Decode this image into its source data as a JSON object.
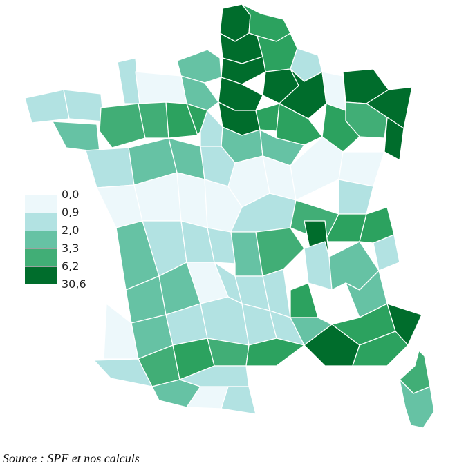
{
  "map": {
    "colors": [
      "#edf8fb",
      "#b2e2e2",
      "#66c2a4",
      "#41ae76",
      "#2ca25f",
      "#006d2c"
    ],
    "legend": {
      "values": [
        "0,0",
        "0,9",
        "2,0",
        "3,3",
        "6,2",
        "30,6"
      ],
      "colors": [
        "#edf8fb",
        "#b2e2e2",
        "#66c2a4",
        "#41ae76",
        "#006d2c"
      ]
    }
  },
  "source": "Source : SPF et nos calculs"
}
